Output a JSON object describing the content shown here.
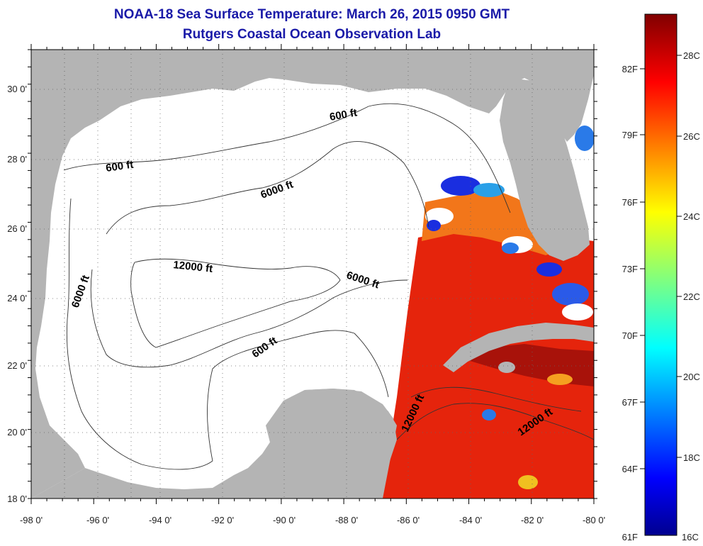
{
  "title": {
    "line1": "NOAA-18 Sea Surface Temperature:  March 26, 2015 0950 GMT",
    "line2": "Rutgers Coastal Ocean Observation Lab"
  },
  "map": {
    "lon_ticks": [
      "-98 0'",
      "-96 0'",
      "-94 0'",
      "-92 0'",
      "-90 0'",
      "-88 0'",
      "-86 0'",
      "-84 0'",
      "-82 0'",
      "-80 0'"
    ],
    "lat_ticks": [
      "18 0'",
      "20 0'",
      "22 0'",
      "24 0'",
      "26 0'",
      "28 0'",
      "30 0'"
    ],
    "contour_labels": [
      {
        "text": "600 ft",
        "kind": "600"
      },
      {
        "text": "600 ft",
        "kind": "600"
      },
      {
        "text": "600 ft",
        "kind": "600"
      },
      {
        "text": "6000 ft",
        "kind": "6000"
      },
      {
        "text": "6000 ft",
        "kind": "6000"
      },
      {
        "text": "6000 ft",
        "kind": "6000"
      },
      {
        "text": "12000 ft",
        "kind": "12000"
      },
      {
        "text": "12000 ft",
        "kind": "12000"
      },
      {
        "text": "12000 ft",
        "kind": "12000"
      }
    ],
    "colors": {
      "land": "#b4b4b4",
      "no_data": "#ffffff",
      "warm_sst": "#e8200e"
    }
  },
  "colorbar": {
    "fahrenheit_labels": [
      "82F",
      "79F",
      "76F",
      "73F",
      "70F",
      "67F",
      "64F",
      "61F"
    ],
    "celsius_labels": [
      "28C",
      "26C",
      "24C",
      "22C",
      "20C",
      "18C",
      "16C"
    ],
    "range_c": [
      16,
      29
    ],
    "colormap": "jet"
  }
}
